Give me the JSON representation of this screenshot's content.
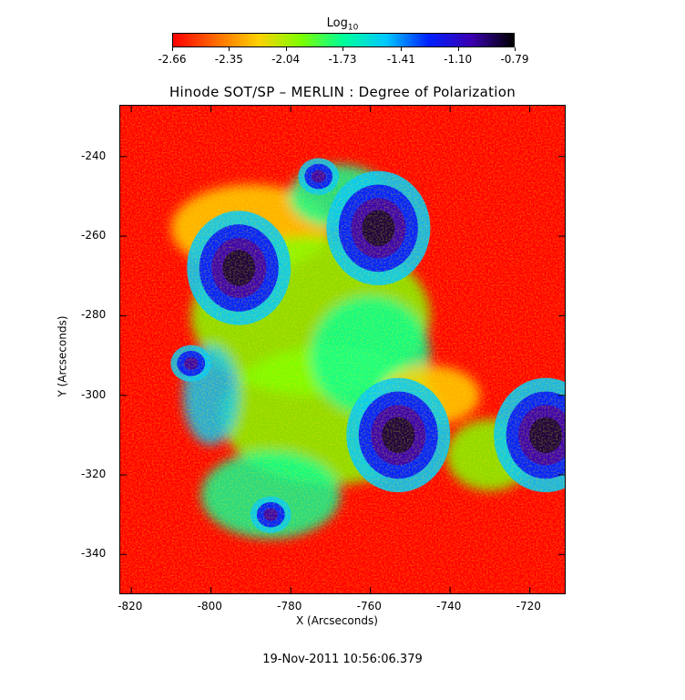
{
  "chart_data": {
    "type": "heatmap",
    "title": "Hinode SOT/SP – MERLIN : Degree of Polarization",
    "xlabel": "X (Arcseconds)",
    "ylabel": "Y (Arcseconds)",
    "xlim": [
      -823,
      -711
    ],
    "ylim": [
      -350,
      -227
    ],
    "x_ticks": [
      "-820",
      "-800",
      "-780",
      "-760",
      "-740",
      "-720"
    ],
    "x_tick_values": [
      -820,
      -800,
      -780,
      -760,
      -740,
      -720
    ],
    "y_ticks": [
      "-240",
      "-260",
      "-280",
      "-300",
      "-320",
      "-340"
    ],
    "y_tick_values": [
      -240,
      -260,
      -280,
      -300,
      -320,
      -340
    ],
    "colorbar": {
      "title": "Log",
      "subscript": "10",
      "tick_labels": [
        "-2.66",
        "-2.35",
        "-2.04",
        "-1.73",
        "-1.41",
        "-1.10",
        "-0.79"
      ],
      "tick_values": [
        -2.66,
        -2.35,
        -2.04,
        -1.73,
        -1.41,
        -1.1,
        -0.79
      ],
      "colormap": [
        "#ff0000",
        "#ff6a00",
        "#ffd000",
        "#7dff00",
        "#00ff9a",
        "#00c8ff",
        "#0020ff",
        "#3a00b0",
        "#000000"
      ]
    },
    "features": [
      {
        "name": "sunspot",
        "x": -793,
        "y": -268,
        "value": -0.95
      },
      {
        "name": "sunspot",
        "x": -758,
        "y": -258,
        "value": -0.85
      },
      {
        "name": "sunspot",
        "x": -753,
        "y": -310,
        "value": -0.85
      },
      {
        "name": "sunspot",
        "x": -716,
        "y": -310,
        "value": -0.9
      },
      {
        "name": "pore",
        "x": -805,
        "y": -292,
        "value": -1.1
      },
      {
        "name": "pore",
        "x": -773,
        "y": -245,
        "value": -1.15
      },
      {
        "name": "pore",
        "x": -785,
        "y": -330,
        "value": -1.15
      }
    ],
    "timestamp": "19-Nov-2011 10:56:06.379"
  }
}
